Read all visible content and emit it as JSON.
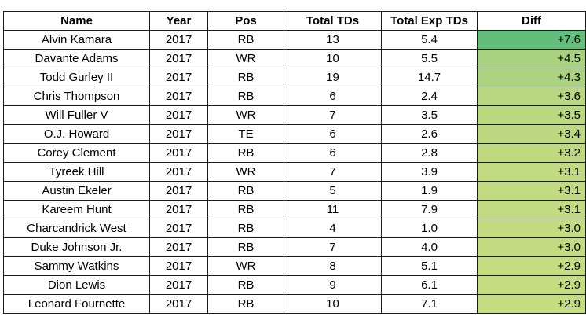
{
  "columns": [
    "Name",
    "Year",
    "Pos",
    "Total TDs",
    "Total Exp TDs",
    "Diff"
  ],
  "rows": [
    {
      "name": "Alvin Kamara",
      "year": "2017",
      "pos": "RB",
      "total": "13",
      "exp": "5.4",
      "diff": "+7.6",
      "color": "#63be7b"
    },
    {
      "name": "Davante Adams",
      "year": "2017",
      "pos": "WR",
      "total": "10",
      "exp": "5.5",
      "diff": "+4.5",
      "color": "#a8d27f"
    },
    {
      "name": "Todd Gurley II",
      "year": "2017",
      "pos": "RB",
      "total": "19",
      "exp": "14.7",
      "diff": "+4.3",
      "color": "#abd37f"
    },
    {
      "name": "Chris Thompson",
      "year": "2017",
      "pos": "RB",
      "total": "6",
      "exp": "2.4",
      "diff": "+3.6",
      "color": "#b8d780"
    },
    {
      "name": "Will Fuller V",
      "year": "2017",
      "pos": "WR",
      "total": "7",
      "exp": "3.5",
      "diff": "+3.5",
      "color": "#bad880"
    },
    {
      "name": "O.J. Howard",
      "year": "2017",
      "pos": "TE",
      "total": "6",
      "exp": "2.6",
      "diff": "+3.4",
      "color": "#bcd881"
    },
    {
      "name": "Corey Clement",
      "year": "2017",
      "pos": "RB",
      "total": "6",
      "exp": "2.8",
      "diff": "+3.2",
      "color": "#c0d981"
    },
    {
      "name": "Tyreek Hill",
      "year": "2017",
      "pos": "WR",
      "total": "7",
      "exp": "3.9",
      "diff": "+3.1",
      "color": "#c2da81"
    },
    {
      "name": "Austin Ekeler",
      "year": "2017",
      "pos": "RB",
      "total": "5",
      "exp": "1.9",
      "diff": "+3.1",
      "color": "#c2da81"
    },
    {
      "name": "Kareem Hunt",
      "year": "2017",
      "pos": "RB",
      "total": "11",
      "exp": "7.9",
      "diff": "+3.1",
      "color": "#c2da81"
    },
    {
      "name": "Charcandrick West",
      "year": "2017",
      "pos": "RB",
      "total": "4",
      "exp": "1.0",
      "diff": "+3.0",
      "color": "#c4db81"
    },
    {
      "name": "Duke Johnson Jr.",
      "year": "2017",
      "pos": "RB",
      "total": "7",
      "exp": "4.0",
      "diff": "+3.0",
      "color": "#c4db81"
    },
    {
      "name": "Sammy Watkins",
      "year": "2017",
      "pos": "WR",
      "total": "8",
      "exp": "5.1",
      "diff": "+2.9",
      "color": "#c6dc81"
    },
    {
      "name": "Dion Lewis",
      "year": "2017",
      "pos": "RB",
      "total": "9",
      "exp": "6.1",
      "diff": "+2.9",
      "color": "#c6dc81"
    },
    {
      "name": "Leonard Fournette",
      "year": "2017",
      "pos": "RB",
      "total": "10",
      "exp": "7.1",
      "diff": "+2.9",
      "color": "#c6dc81"
    }
  ]
}
